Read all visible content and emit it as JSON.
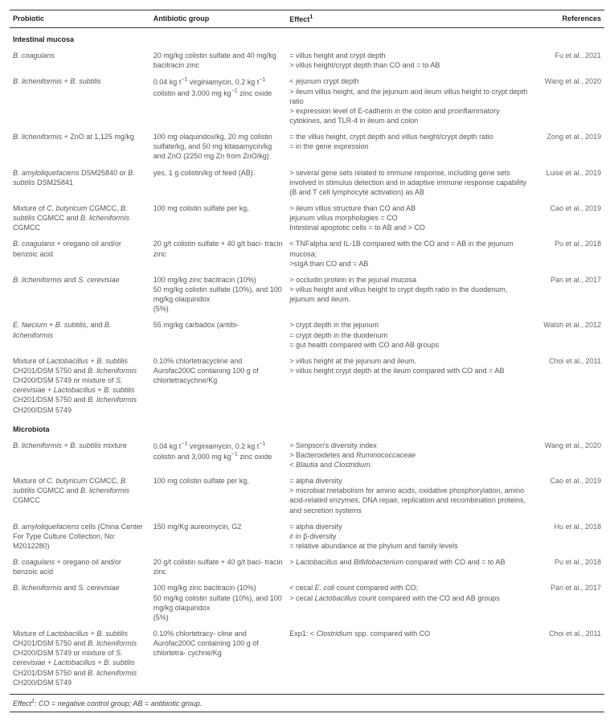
{
  "headers": {
    "probiotic": "Probiotic",
    "antibiotic": "Antibiotic group",
    "effect": "Effect",
    "effect_sup": "1",
    "references": "References"
  },
  "sections": [
    {
      "title": "Intestinal mucosa",
      "rows": [
        {
          "probiotic": "<em>B. coagulans</em>",
          "antibiotic": "20 mg/kg colistin sulfate and 40 mg/kg bacitracin zinc",
          "effect": "= villus height and crypt depth<br>&gt; villus height/crypt depth than CO and = to AB",
          "ref": "Fu et al., 2021"
        },
        {
          "probiotic": "<em>B. licheniformis</em> + <em>B. subtilis</em>",
          "antibiotic": "0.04 kg t<sup>−1</sup> virginiamycin, 0.2 kg t<sup>−1</sup> colistin and 3,000 mg kg<sup>−1</sup> zinc oxide",
          "effect": "&lt; jejunum crypt depth<br>&gt; ileum villus height, and the jejunum and ileum villus height to crypt depth ratio<br>&gt; expression level of E-cadherin in the colon and proinflammatory cytokines, and TLR-4 in ileum and colon",
          "ref": "Wang et al., 2020"
        },
        {
          "probiotic": "<em>B. licheniformis</em> + ZnO at 1,125 mg/kg",
          "antibiotic": "100 mg olaquindox/kg, 20 mg colistin sulfate/kg, and 50 mg kitasamycin/kg and ZnO (2250 mg Zn from ZnO/kg)",
          "effect": "= the villus height, crypt depth and villus height/crypt depth ratio<br>= in the gene expression",
          "ref": "Zong et al., 2019"
        },
        {
          "probiotic": "<em>B. amyloliquefaciens</em> DSM25840 or <em>B. subtilis</em> DSM25841",
          "antibiotic": "yes, 1 g colistin/kg of feed (AB).",
          "effect": "&gt; several gene sets related to immune response, including gene sets involved in stimulus detection and in adaptive immune response capability (B and T cell lymphocyte activation) as AB",
          "ref": "Luise et al., 2019"
        },
        {
          "probiotic": "Mixture of <em>C. butyricum</em> CGMCC, <em>B. subtilis</em> CGMCC and <em>B. licheniformis</em> CGMCC",
          "antibiotic": "100 mg colistin sulfate per kg,",
          "effect": "&gt; ileum villus structure than CO and AB<br>jejunum villus morphologies = CO<br>Intestinal apoptotic cells = to AB and &gt; CO",
          "ref": "Cao et al., 2019"
        },
        {
          "probiotic": "<em>B. coagulans</em> + oregano oil and/or benzoic acid",
          "antibiotic": "20 g/t colistin sulfate + 40 g/t baci- tracin zinc",
          "effect": "&lt; TNFalpha and IL-1B compared with the CO and = AB in the jejunum mucosa;<br>&gt;sIgA than CO and = AB",
          "ref": "Pu et al., 2018"
        },
        {
          "probiotic": "<em>B. licheniformis</em> and <em>S. cerevisiae</em>",
          "antibiotic": "100 mg/kg zinc bacitracin (10%)<br>50 mg/kg colistin sulfate (10%), and 100 mg/kg olaquindox<br>(5%)",
          "effect": "&gt; occludin protein in the jejunal mucosa<br>&gt; villus height and villus height to crypt depth ratio in the duodenum, jejunum and ileum.",
          "ref": "Pan et al., 2017"
        },
        {
          "probiotic": "<em>E. faecium</em> + <em>B. subtilis</em>, and <em>B. licheniformis</em>",
          "antibiotic": "55 mg/kg carbadox (antibi-",
          "effect": "&gt; crypt depth in the jejunum<br>= crypt depth in the duodenum<br>= gut health compared with CO and AB groups",
          "ref": "Walsh et al., 2012"
        },
        {
          "probiotic": "Mixture of <em>Lactobacillus</em> + <em>B. subtilis</em> CH201/DSM 5750 and <em>B. licheniformis</em> CH200/DSM 5749 or mixture of <em>S. cerevisiae</em> + <em>Lactobacillus</em> + <em>B. subtilis</em> CH201/DSM 5750 and <em>B. licheniformis</em> CH200/DSM 5749",
          "antibiotic": "0.10% chlortetracycline and Aurofac200C containing 100 g of chlortetracychne/Kg",
          "effect": "&gt; villus height at the jejunum and ileum,<br>&gt; villus height:crypt depth at the ileum compared with CO and = AB",
          "ref": "Choi et al., 2011"
        }
      ]
    },
    {
      "title": "Microbiota",
      "rows": [
        {
          "probiotic": "<em>B. licheniformis</em> + <em>B. subtilis</em> mixture",
          "antibiotic": "0.04 kg t<sup>−1</sup> virginiamycin, 0.2 kg t<sup>−1</sup> colistin and 3,000 mg kg<sup>−1</sup> zinc oxide",
          "effect": "&gt; Simpson's diversity index<br>&gt; Bacteroidetes and <em>Ruminococcaceae</em><br>&lt; <em>Blautia</em> and <em>Clostridium</em>.",
          "ref": "Wang et al., 2020"
        },
        {
          "probiotic": "Mixture of <em>C. butyricum</em> CGMCC, <em>B. subtilis</em> CGMCC and <em>B. licheniformis</em> CGMCC",
          "antibiotic": "100 mg colistin sulfate per kg,",
          "effect": "= alpha diversity<br>&gt; microbial metabolism for amino acids, oxidative phosphorylation, amino acid-related enzymes, DNA repair, replication and recombination proteins, and secretion systems",
          "ref": "Cao et al., 2019"
        },
        {
          "probiotic": "<em>B. amyloliquefaciens</em> cells (China Center For Type Culture Collection, No: M2012280)",
          "antibiotic": "150 mg/Kg aureomycin, G2",
          "effect": "= alpha diversity<br>≠ in β-diversity<br>= relative abundance at the phylum and family levels",
          "ref": "Hu et al., 2018"
        },
        {
          "probiotic": "<em>B. coagulans</em> + oregano oil and/or benzoic acid",
          "antibiotic": "20 g/t colistin sulfate + 40 g/t baci- tracin zinc",
          "effect": "&gt; <em>Lactobacillus</em> and <em>Bifidobacterium</em> compared with CO and = to AB",
          "ref": "Pu et al., 2018"
        },
        {
          "probiotic": "<em>B. licheniformis</em> and <em>S. cerevisiae</em>",
          "antibiotic": "100 mg/kg zinc bacitracin (10%)<br>50 mg/kg colistin sulfate (10%), and 100 mg/kg olaquindox<br>(5%)",
          "effect": "&lt; cecal <em>E. coli</em> count compared with CO;<br>&gt; cecal <em>Lactobacillus</em> count compared with the CO and AB groups",
          "ref": "Pan et al., 2017"
        },
        {
          "probiotic": "Mixture of <em>Lactobacillus</em> + <em>B. subtilis</em> CH201/DSM 5750 and <em>B. licheniformis</em> CH200/DSM 5749 or mixture of <em>S. cerevisiae</em> + <em>Lactobacillus</em> + <em>B. subtilis</em> CH201/DSM 5750 and <em>B. licheniformis</em> CH200/DSM 5749",
          "antibiotic": "0.10% chlortetracy- cline and Aurofac200C containing 100 g of chlortetra- cychne/Kg",
          "effect": "Exp1: &lt; <em>Clostridium</em> spp. compared with CO",
          "ref": "Choi et al., 2011"
        }
      ]
    }
  ],
  "footnote": {
    "label": "Effect",
    "sup": "1",
    "text": ": CO = negative control group; AB = antibiotic group."
  }
}
